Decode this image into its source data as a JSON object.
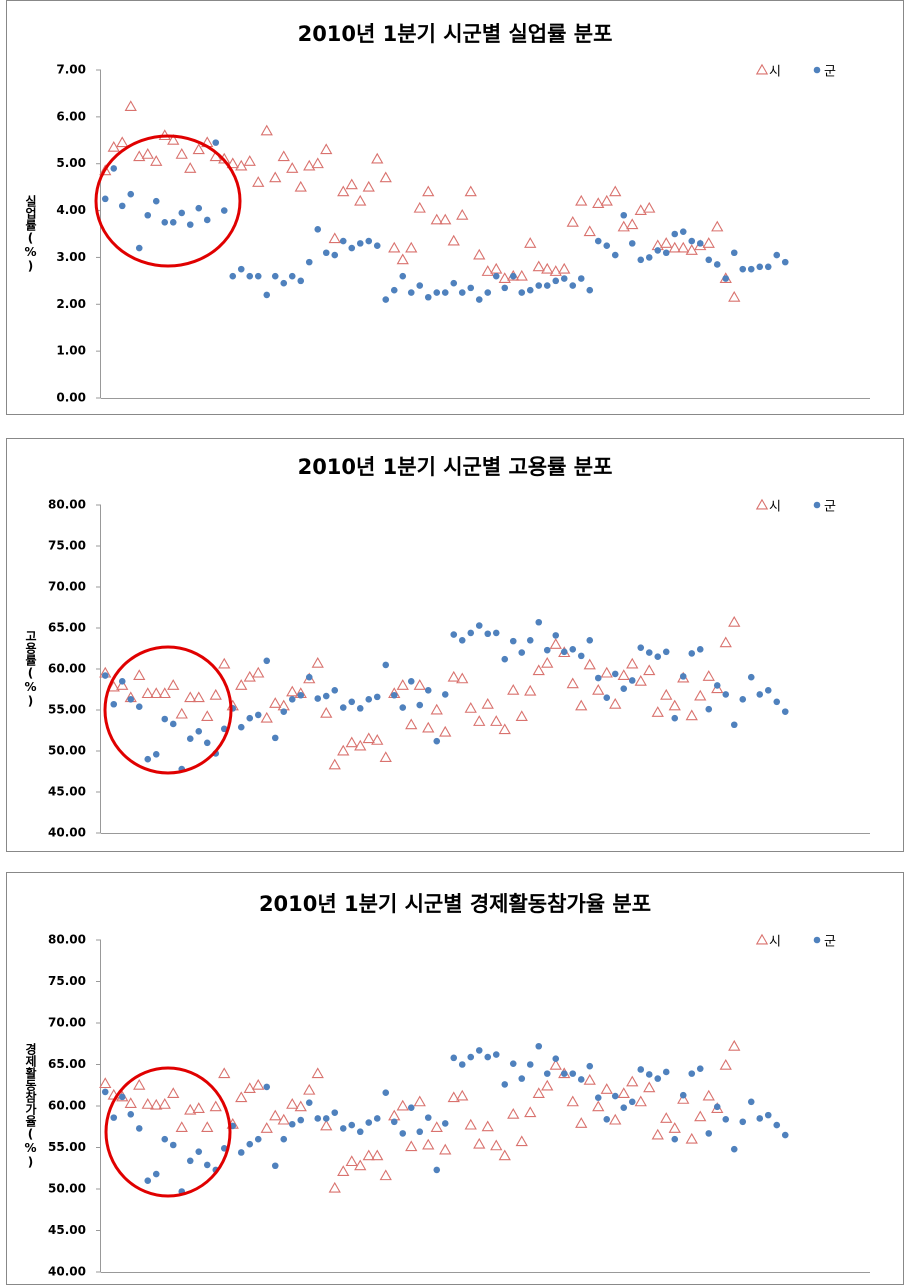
{
  "chart_data": [
    {
      "type": "scatter",
      "title": "2010년 1분기 시군별 실업률 분포",
      "y_label": "실업률(%)",
      "grid": false,
      "legend": "top-right",
      "ylim": [
        0,
        7
      ],
      "yticks": [
        {
          "value": 0,
          "label": "0.00"
        },
        {
          "value": 1,
          "label": "1.00"
        },
        {
          "value": 2,
          "label": "2.00"
        },
        {
          "value": 3,
          "label": "3.00"
        },
        {
          "value": 4,
          "label": "4.00"
        },
        {
          "value": 5,
          "label": "5.00"
        },
        {
          "value": 6,
          "label": "6.00"
        },
        {
          "value": 7,
          "label": "7.00"
        }
      ],
      "categories": [
        null,
        null,
        null,
        null,
        null,
        null,
        null,
        null,
        null,
        null,
        null,
        null,
        null,
        null,
        null,
        null,
        null,
        null,
        null,
        null,
        null,
        null,
        null,
        null,
        null,
        null,
        null,
        null,
        null,
        null,
        null,
        null,
        null,
        null,
        null,
        null,
        null,
        null,
        null,
        null,
        null,
        null,
        null,
        null,
        null,
        null,
        null,
        null,
        null,
        null,
        null,
        null,
        null,
        null,
        null,
        null,
        null,
        null,
        null,
        null,
        null,
        null,
        null,
        null,
        null,
        null,
        null,
        null,
        null,
        null,
        null,
        null,
        null,
        null,
        null,
        null,
        null,
        null,
        null,
        null,
        null
      ],
      "series": [
        {
          "name": "시",
          "color": "#d9726e",
          "marker": "triangle-open",
          "values": [
            4.85,
            5.35,
            5.45,
            6.22,
            5.15,
            5.2,
            5.05,
            5.6,
            5.5,
            5.2,
            4.9,
            5.3,
            5.45,
            5.15,
            5.1,
            5.0,
            4.95,
            5.05,
            4.6,
            5.7,
            4.7,
            5.15,
            4.9,
            4.5,
            4.95,
            5.0,
            5.3,
            3.4,
            4.4,
            4.55,
            4.2,
            4.5,
            5.1,
            4.7,
            3.2,
            2.95,
            3.2,
            4.05,
            4.4,
            3.8,
            3.8,
            3.35,
            3.9,
            4.4,
            3.05,
            2.7,
            2.75,
            2.55,
            2.6,
            2.6,
            3.3,
            2.8,
            2.75,
            2.7,
            2.75,
            3.75,
            4.2,
            3.55,
            4.15,
            4.2,
            4.4,
            3.65,
            3.7,
            4.0,
            4.05,
            3.25,
            3.3,
            3.2,
            3.2,
            3.15,
            3.25,
            3.3,
            3.65,
            2.55,
            2.15,
            null,
            null,
            null,
            null,
            null,
            null
          ]
        },
        {
          "name": "군",
          "color": "#4f81bd",
          "marker": "circle",
          "values": [
            4.25,
            4.9,
            4.1,
            4.35,
            3.2,
            3.9,
            4.2,
            3.75,
            3.75,
            3.95,
            3.7,
            4.05,
            3.8,
            5.45,
            4.0,
            2.6,
            2.75,
            2.6,
            2.6,
            2.2,
            2.6,
            2.45,
            2.6,
            2.5,
            2.9,
            3.6,
            3.1,
            3.05,
            3.35,
            3.2,
            3.3,
            3.35,
            3.25,
            2.1,
            2.3,
            2.6,
            2.25,
            2.4,
            2.15,
            2.25,
            2.25,
            2.45,
            2.25,
            2.35,
            2.1,
            2.25,
            2.6,
            2.35,
            2.6,
            2.25,
            2.3,
            2.4,
            2.4,
            2.5,
            2.55,
            2.4,
            2.55,
            2.3,
            3.35,
            3.25,
            3.05,
            3.9,
            3.3,
            2.95,
            3.0,
            3.15,
            3.1,
            3.5,
            3.55,
            3.35,
            3.3,
            2.95,
            2.85,
            2.55,
            3.1,
            2.75,
            2.75,
            2.8,
            2.8,
            3.05,
            2.9
          ]
        }
      ]
    },
    {
      "type": "scatter",
      "title": "2010년 1분기 시군별 고용률 분포",
      "y_label": "고용률(%)",
      "grid": false,
      "legend": "top-right",
      "ylim": [
        40,
        80
      ],
      "yticks": [
        {
          "value": 40,
          "label": "40.00"
        },
        {
          "value": 45,
          "label": "45.00"
        },
        {
          "value": 50,
          "label": "50.00"
        },
        {
          "value": 55,
          "label": "55.00"
        },
        {
          "value": 60,
          "label": "60.00"
        },
        {
          "value": 65,
          "label": "65.00"
        },
        {
          "value": 70,
          "label": "70.00"
        },
        {
          "value": 75,
          "label": "75.00"
        },
        {
          "value": 80,
          "label": "80.00"
        }
      ],
      "categories": [
        null,
        null,
        null,
        null,
        null,
        null,
        null,
        null,
        null,
        null,
        null,
        null,
        null,
        null,
        null,
        null,
        null,
        null,
        null,
        null,
        null,
        null,
        null,
        null,
        null,
        null,
        null,
        null,
        null,
        null,
        null,
        null,
        null,
        null,
        null,
        null,
        null,
        null,
        null,
        null,
        null,
        null,
        null,
        null,
        null,
        null,
        null,
        null,
        null,
        null,
        null,
        null,
        null,
        null,
        null,
        null,
        null,
        null,
        null,
        null,
        null,
        null,
        null,
        null,
        null,
        null,
        null,
        null,
        null,
        null,
        null,
        null,
        null,
        null,
        null,
        null,
        null,
        null,
        null,
        null,
        null
      ],
      "series": [
        {
          "name": "시",
          "color": "#d9726e",
          "marker": "triangle-open",
          "values": [
            59.5,
            57.8,
            58.0,
            56.5,
            59.2,
            57.0,
            57.0,
            57.0,
            58.0,
            54.5,
            56.5,
            56.5,
            54.2,
            56.8,
            60.6,
            55.5,
            58.0,
            59.0,
            59.5,
            54.0,
            55.8,
            55.5,
            57.2,
            57.0,
            58.8,
            60.7,
            54.6,
            48.3,
            50.0,
            51.0,
            50.6,
            51.5,
            51.3,
            49.2,
            57.0,
            58.0,
            53.2,
            58.0,
            52.8,
            55.0,
            52.3,
            59.0,
            58.8,
            55.2,
            53.6,
            55.7,
            53.6,
            52.6,
            57.4,
            54.2,
            57.3,
            59.8,
            60.7,
            63.0,
            62.0,
            58.2,
            55.5,
            60.5,
            57.4,
            59.5,
            55.7,
            59.2,
            60.6,
            58.5,
            59.8,
            54.7,
            56.8,
            55.5,
            58.9,
            54.3,
            56.7,
            59.1,
            57.6,
            63.2,
            65.7,
            null,
            null,
            null,
            null,
            null,
            null
          ]
        },
        {
          "name": "군",
          "color": "#4f81bd",
          "marker": "circle",
          "values": [
            59.2,
            55.7,
            58.5,
            56.3,
            55.4,
            49.0,
            49.6,
            53.9,
            53.3,
            47.8,
            51.5,
            52.4,
            51.0,
            49.7,
            52.7,
            55.2,
            52.9,
            54.0,
            54.4,
            61.0,
            51.6,
            54.8,
            56.3,
            56.8,
            59.0,
            56.4,
            56.7,
            57.4,
            55.3,
            56.0,
            55.2,
            56.3,
            56.6,
            60.5,
            56.8,
            55.3,
            58.5,
            55.6,
            57.4,
            51.2,
            56.9,
            64.2,
            63.5,
            64.4,
            65.3,
            64.3,
            64.4,
            61.2,
            63.4,
            62.0,
            63.5,
            65.7,
            62.3,
            64.1,
            62.1,
            62.4,
            61.6,
            63.5,
            58.9,
            56.5,
            59.4,
            57.6,
            58.6,
            62.6,
            62.0,
            61.5,
            62.1,
            54.0,
            59.1,
            61.9,
            62.4,
            55.1,
            58.0,
            56.9,
            53.2,
            56.3,
            59.0,
            56.9,
            57.4,
            56.0,
            54.8
          ]
        }
      ]
    },
    {
      "type": "scatter",
      "title": "2010년 1분기 시군별 경제활동참가율 분포",
      "y_label": "경제활동참가율(%)",
      "grid": false,
      "legend": "top-right",
      "ylim": [
        40,
        80
      ],
      "yticks": [
        {
          "value": 40,
          "label": "40.00"
        },
        {
          "value": 45,
          "label": "45.00"
        },
        {
          "value": 50,
          "label": "50.00"
        },
        {
          "value": 55,
          "label": "55.00"
        },
        {
          "value": 60,
          "label": "60.00"
        },
        {
          "value": 65,
          "label": "65.00"
        },
        {
          "value": 70,
          "label": "70.00"
        },
        {
          "value": 75,
          "label": "75.00"
        },
        {
          "value": 80,
          "label": "80.00"
        }
      ],
      "categories": [
        null,
        null,
        null,
        null,
        null,
        null,
        null,
        null,
        null,
        null,
        null,
        null,
        null,
        null,
        null,
        null,
        null,
        null,
        null,
        null,
        null,
        null,
        null,
        null,
        null,
        null,
        null,
        null,
        null,
        null,
        null,
        null,
        null,
        null,
        null,
        null,
        null,
        null,
        null,
        null,
        null,
        null,
        null,
        null,
        null,
        null,
        null,
        null,
        null,
        null,
        null,
        null,
        null,
        null,
        null,
        null,
        null,
        null,
        null,
        null,
        null,
        null,
        null,
        null,
        null,
        null,
        null,
        null,
        null,
        null,
        null,
        null,
        null,
        null,
        null,
        null,
        null,
        null,
        null,
        null,
        null
      ],
      "series": [
        {
          "name": "시",
          "color": "#d9726e",
          "marker": "triangle-open",
          "values": [
            62.7,
            61.3,
            61.1,
            60.3,
            62.5,
            60.2,
            60.1,
            60.2,
            61.5,
            57.4,
            59.5,
            59.7,
            57.4,
            59.9,
            63.9,
            57.8,
            61.0,
            62.1,
            62.5,
            57.3,
            58.8,
            58.3,
            60.2,
            59.9,
            61.9,
            63.9,
            57.6,
            50.1,
            52.1,
            53.3,
            52.8,
            54.0,
            54.0,
            51.6,
            58.8,
            60.0,
            55.1,
            60.5,
            55.3,
            57.4,
            54.7,
            61.0,
            61.2,
            57.7,
            55.4,
            57.5,
            55.2,
            54.0,
            59.0,
            55.7,
            59.2,
            61.5,
            62.4,
            64.9,
            63.9,
            60.5,
            57.9,
            63.1,
            59.9,
            62.0,
            58.3,
            61.5,
            62.9,
            60.5,
            62.2,
            56.5,
            58.5,
            57.3,
            60.8,
            56.0,
            58.7,
            61.2,
            59.7,
            64.9,
            67.2,
            null,
            null,
            null,
            null,
            null,
            null
          ]
        },
        {
          "name": "군",
          "color": "#4f81bd",
          "marker": "circle",
          "values": [
            61.7,
            58.6,
            61.1,
            59.0,
            57.3,
            51.0,
            51.8,
            56.0,
            55.3,
            49.7,
            53.4,
            54.5,
            52.9,
            52.3,
            54.9,
            57.6,
            54.4,
            55.4,
            56.0,
            62.3,
            52.8,
            56.0,
            57.8,
            58.3,
            60.4,
            58.5,
            58.5,
            59.2,
            57.3,
            57.7,
            56.9,
            58.0,
            58.5,
            61.6,
            58.1,
            56.7,
            59.8,
            56.9,
            58.6,
            52.3,
            57.9,
            65.8,
            65.0,
            65.9,
            66.7,
            65.9,
            66.2,
            62.6,
            65.1,
            63.3,
            65.0,
            67.2,
            63.9,
            65.7,
            63.9,
            63.9,
            63.2,
            64.8,
            61.0,
            58.4,
            61.2,
            59.8,
            60.5,
            64.4,
            63.8,
            63.3,
            64.1,
            56.0,
            61.3,
            63.9,
            64.5,
            56.7,
            59.9,
            58.4,
            54.8,
            58.1,
            60.5,
            58.5,
            58.9,
            57.7,
            56.5
          ]
        }
      ]
    }
  ]
}
